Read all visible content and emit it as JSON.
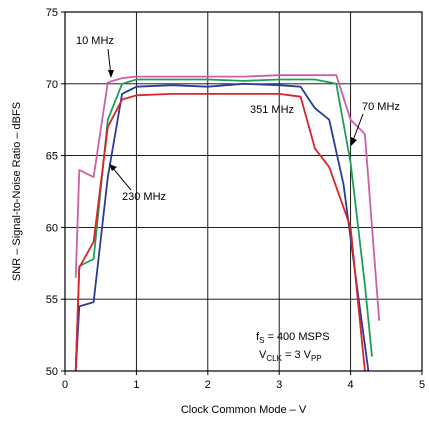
{
  "chart_data": {
    "type": "line",
    "xlabel": "Clock Common Mode – V",
    "ylabel": "SNR – Signal-to-Noise Ratio – dBFS",
    "xlim": [
      0,
      5
    ],
    "ylim": [
      50,
      75
    ],
    "xticks": [
      "0",
      "1",
      "2",
      "3",
      "4",
      "5"
    ],
    "yticks": [
      "50",
      "55",
      "60",
      "65",
      "70",
      "75"
    ],
    "grid": true,
    "annotations": {
      "label_10": "10 MHz",
      "label_70": "70 MHz",
      "label_230": "230 MHz",
      "label_351": "351 MHz",
      "fs_main": "f",
      "fs_sub": "S",
      "fs_rest": " = 400 MSPS",
      "vclk_main": "V",
      "vclk_sub": "CLK",
      "vclk_mid": " = 3 V",
      "vclk_sub2": "PP"
    },
    "series": [
      {
        "name": "10 MHz",
        "color": "#cc5fa8",
        "x": [
          0.15,
          0.2,
          0.4,
          0.6,
          0.8,
          1.0,
          1.5,
          2.0,
          2.5,
          3.0,
          3.5,
          3.8,
          4.0,
          4.2,
          4.4
        ],
        "y": [
          56.5,
          64.0,
          63.5,
          70.1,
          70.4,
          70.5,
          70.5,
          70.5,
          70.5,
          70.6,
          70.6,
          70.6,
          67.5,
          66.5,
          53.5
        ]
      },
      {
        "name": "70 MHz",
        "color": "#1f9e5a",
        "x": [
          0.15,
          0.2,
          0.4,
          0.6,
          0.8,
          1.0,
          1.5,
          2.0,
          2.5,
          3.0,
          3.5,
          3.8,
          4.0,
          4.2,
          4.3
        ],
        "y": [
          50.0,
          57.3,
          57.8,
          67.5,
          70.0,
          70.3,
          70.3,
          70.3,
          70.2,
          70.3,
          70.3,
          70.0,
          64.5,
          56.0,
          51.0
        ]
      },
      {
        "name": "230 MHz",
        "color": "#2b3a9a",
        "x": [
          0.15,
          0.2,
          0.4,
          0.6,
          0.8,
          1.0,
          1.5,
          2.0,
          2.5,
          3.0,
          3.3,
          3.5,
          3.7,
          3.9,
          4.1,
          4.25
        ],
        "y": [
          50.0,
          54.5,
          54.8,
          63.5,
          69.3,
          69.8,
          69.9,
          69.8,
          70.0,
          69.9,
          69.8,
          68.3,
          67.5,
          63.0,
          55.5,
          50.0
        ]
      },
      {
        "name": "351 MHz",
        "color": "#d8252b",
        "x": [
          0.15,
          0.2,
          0.4,
          0.6,
          0.8,
          1.0,
          1.5,
          2.0,
          2.5,
          3.0,
          3.3,
          3.5,
          3.7,
          4.0,
          4.2
        ],
        "y": [
          50.0,
          57.2,
          59.0,
          67.0,
          68.9,
          69.2,
          69.3,
          69.3,
          69.3,
          69.3,
          69.1,
          65.5,
          64.2,
          60.0,
          50.0
        ]
      }
    ]
  }
}
